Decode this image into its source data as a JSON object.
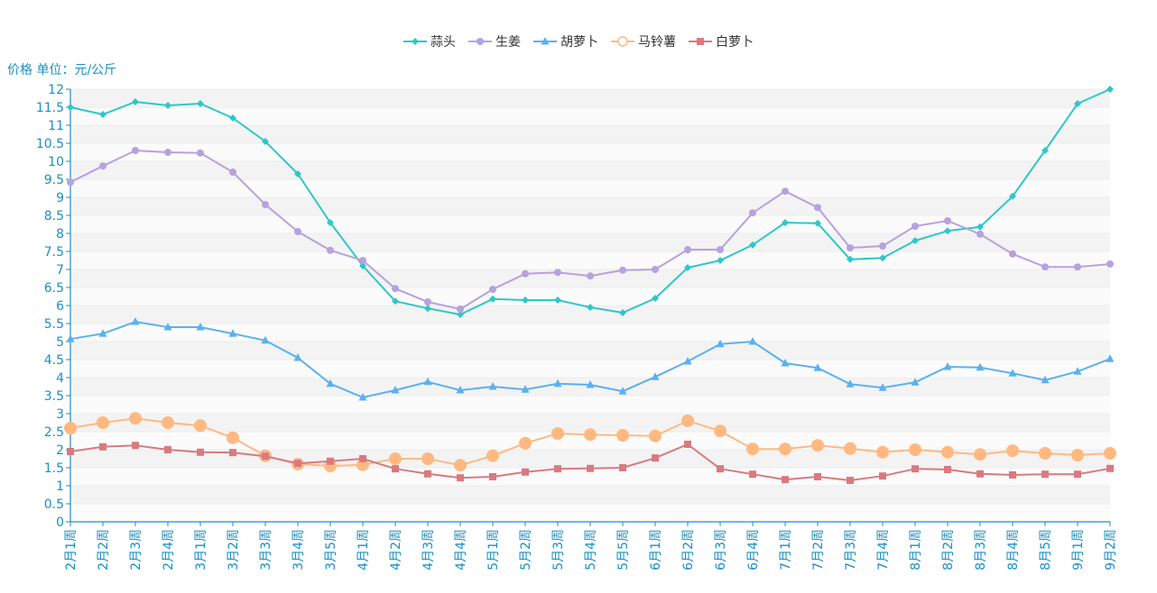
{
  "chart_data": {
    "type": "line",
    "ylabel": "价格 单位：元/公斤",
    "ylim": [
      0,
      12
    ],
    "ytick_step": 0.5,
    "categories": [
      "2月1周",
      "2月2周",
      "2月3周",
      "2月4周",
      "3月1周",
      "3月2周",
      "3月3周",
      "3月4周",
      "3月5周",
      "4月1周",
      "4月2周",
      "4月3周",
      "4月4周",
      "5月1周",
      "5月2周",
      "5月3周",
      "5月4周",
      "5月5周",
      "6月1周",
      "6月2周",
      "6月3周",
      "6月4周",
      "7月1周",
      "7月2周",
      "7月3周",
      "7月4周",
      "8月1周",
      "8月2周",
      "8月3周",
      "8月4周",
      "8月5周",
      "9月1周",
      "9月2周"
    ],
    "series": [
      {
        "name": "蒜头",
        "color": "#2ec7c9",
        "marker": "diamond",
        "values": [
          11.5,
          11.3,
          11.65,
          11.55,
          11.6,
          11.2,
          10.55,
          9.65,
          8.3,
          7.1,
          6.12,
          5.92,
          5.75,
          6.18,
          6.15,
          6.15,
          5.95,
          5.8,
          6.2,
          7.05,
          7.25,
          7.68,
          8.3,
          8.28,
          7.28,
          7.32,
          7.8,
          8.07,
          8.18,
          9.03,
          10.3,
          11.6,
          12.0
        ]
      },
      {
        "name": "生姜",
        "color": "#b6a2de",
        "marker": "circle",
        "values": [
          9.42,
          9.87,
          10.3,
          10.25,
          10.23,
          9.7,
          8.8,
          8.05,
          7.53,
          7.25,
          6.47,
          6.1,
          5.9,
          6.45,
          6.88,
          6.92,
          6.82,
          6.98,
          7.0,
          7.55,
          7.55,
          8.57,
          9.17,
          8.72,
          7.6,
          7.65,
          8.2,
          8.35,
          7.98,
          7.43,
          7.07,
          7.07,
          7.15
        ]
      },
      {
        "name": "胡萝卜",
        "color": "#5ab1ef",
        "marker": "triangle",
        "values": [
          5.07,
          5.22,
          5.55,
          5.4,
          5.4,
          5.22,
          5.03,
          4.55,
          3.83,
          3.45,
          3.65,
          3.88,
          3.65,
          3.75,
          3.67,
          3.83,
          3.8,
          3.62,
          4.02,
          4.45,
          4.93,
          5.0,
          4.4,
          4.27,
          3.82,
          3.72,
          3.87,
          4.3,
          4.28,
          4.12,
          3.93,
          4.17,
          4.52
        ]
      },
      {
        "name": "马铃薯",
        "color": "#ffb980",
        "marker": "hollow-circle",
        "values": [
          2.6,
          2.75,
          2.87,
          2.75,
          2.67,
          2.33,
          1.83,
          1.6,
          1.55,
          1.58,
          1.75,
          1.75,
          1.57,
          1.83,
          2.18,
          2.45,
          2.42,
          2.4,
          2.38,
          2.8,
          2.52,
          2.02,
          2.02,
          2.12,
          2.03,
          1.93,
          2.0,
          1.93,
          1.87,
          1.97,
          1.9,
          1.85,
          1.9
        ]
      },
      {
        "name": "白萝卜",
        "color": "#d87a80",
        "marker": "square",
        "values": [
          1.95,
          2.08,
          2.12,
          2.0,
          1.93,
          1.92,
          1.82,
          1.62,
          1.68,
          1.75,
          1.47,
          1.33,
          1.22,
          1.25,
          1.38,
          1.47,
          1.48,
          1.5,
          1.77,
          2.15,
          1.47,
          1.32,
          1.17,
          1.25,
          1.15,
          1.27,
          1.47,
          1.45,
          1.33,
          1.3,
          1.32,
          1.32,
          1.48
        ]
      }
    ]
  }
}
